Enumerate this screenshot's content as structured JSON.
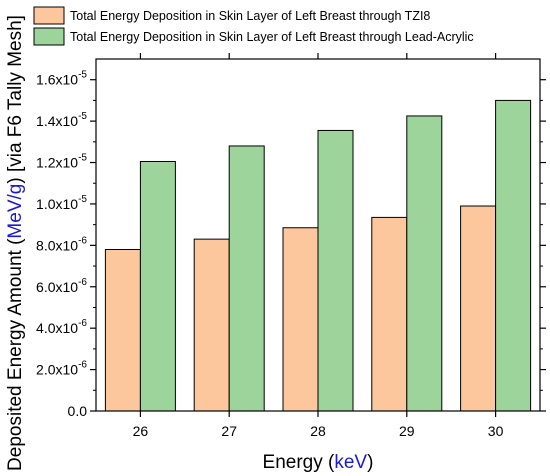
{
  "chart_data": {
    "type": "bar",
    "categories": [
      "26",
      "27",
      "28",
      "29",
      "30"
    ],
    "series": [
      {
        "name": "Total Energy Deposition in Skin Layer of Left Breast through TZI8",
        "values": [
          7.8e-06,
          8.3e-06,
          8.85e-06,
          9.35e-06,
          9.9e-06
        ],
        "color": "#fcc79c"
      },
      {
        "name": "Total Energy Deposition in Skin Layer of Left Breast through Lead-Acrylic",
        "values": [
          1.205e-05,
          1.28e-05,
          1.355e-05,
          1.425e-05,
          1.5e-05
        ],
        "color": "#9dd49b"
      }
    ],
    "xlabel": {
      "main": "Energy (",
      "unit": "keV",
      "close": ")"
    },
    "ylabel": {
      "main": "Deposited Energy Amount (",
      "unit": "MeV/g",
      "close": ") [via F6 Tally Mesh]"
    },
    "unit_color": "#1a1ad6",
    "ylim": [
      0,
      1.7e-05
    ],
    "yticks": [
      {
        "value": 0,
        "mantissa": "0.0",
        "exp": ""
      },
      {
        "value": 2e-06,
        "mantissa": "2.0x10",
        "exp": "-6"
      },
      {
        "value": 4e-06,
        "mantissa": "4.0x10",
        "exp": "-6"
      },
      {
        "value": 6e-06,
        "mantissa": "6.0x10",
        "exp": "-6"
      },
      {
        "value": 8e-06,
        "mantissa": "8.0x10",
        "exp": "-6"
      },
      {
        "value": 1e-05,
        "mantissa": "1.0x10",
        "exp": "-5"
      },
      {
        "value": 1.2e-05,
        "mantissa": "1.2x10",
        "exp": "-5"
      },
      {
        "value": 1.4e-05,
        "mantissa": "1.4x10",
        "exp": "-5"
      },
      {
        "value": 1.6e-05,
        "mantissa": "1.6x10",
        "exp": "-5"
      }
    ],
    "legend": "top",
    "grid": false
  }
}
